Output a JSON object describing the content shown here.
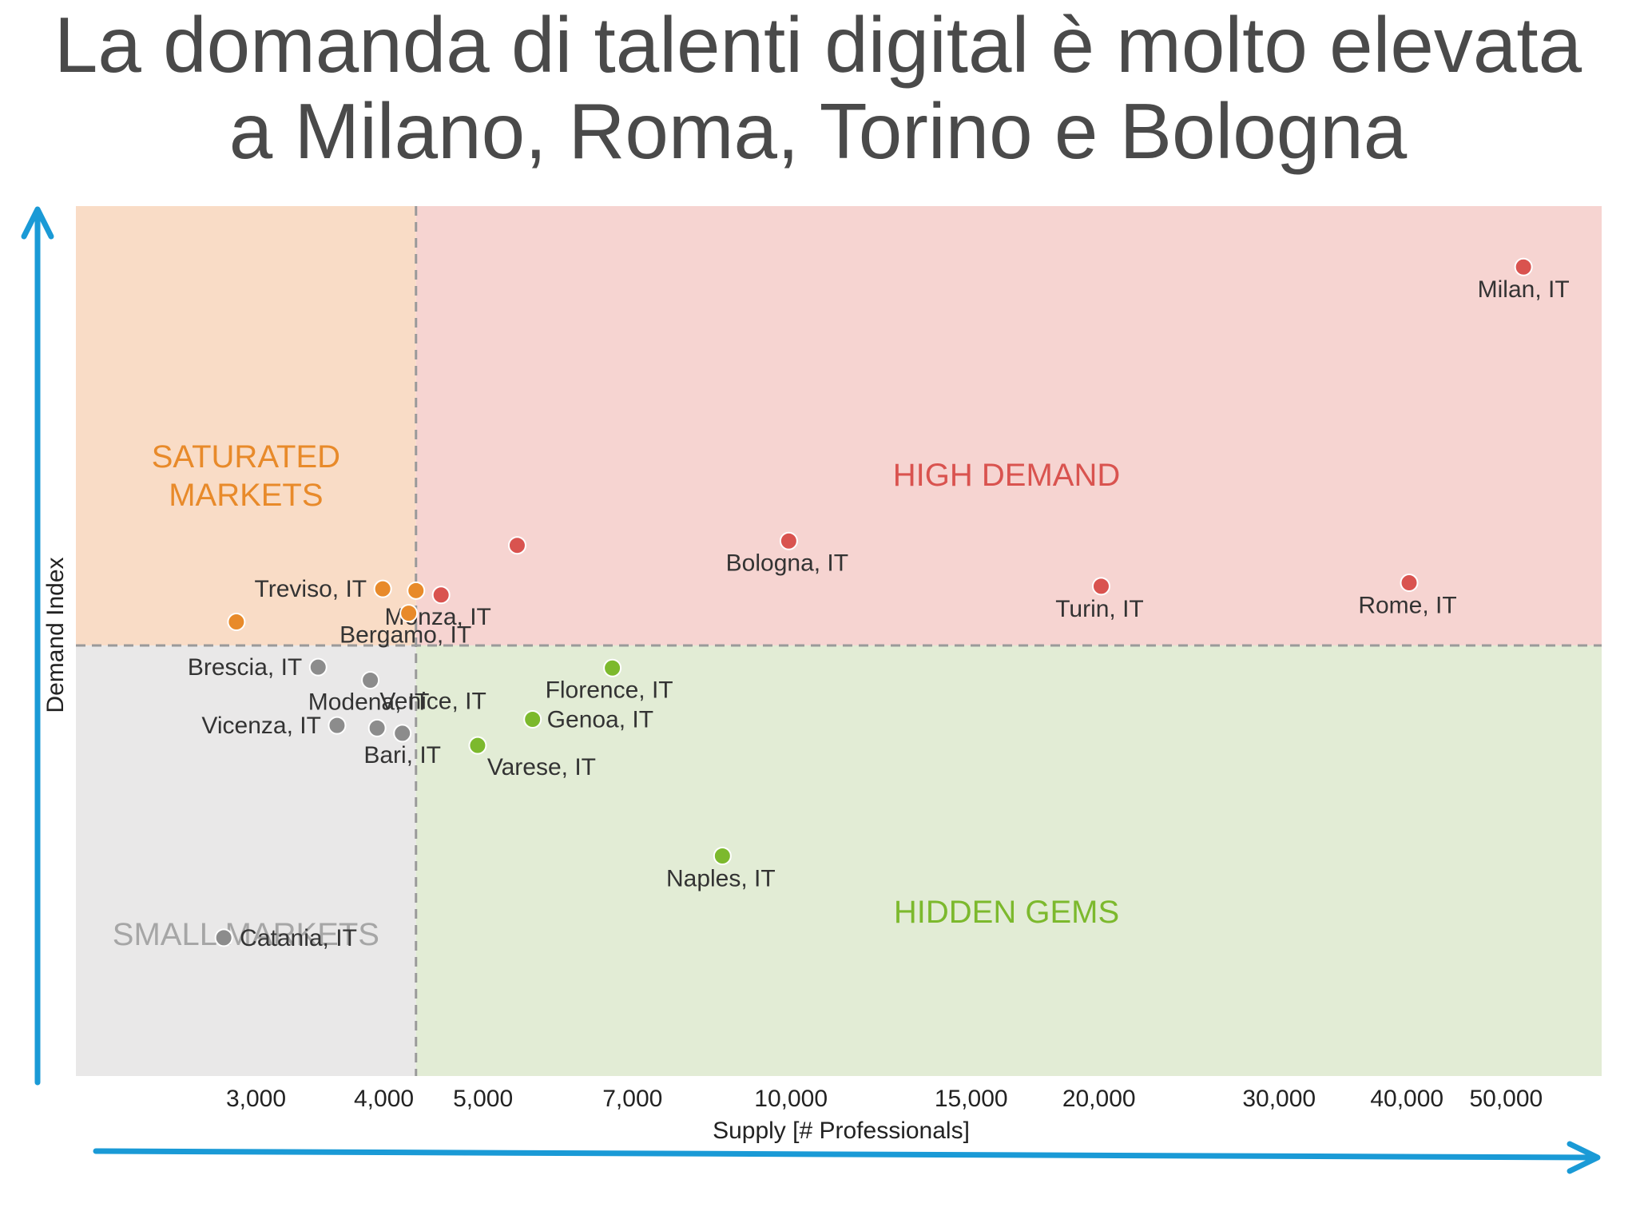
{
  "title": {
    "line1": "La domanda di talenti digital è molto elevata",
    "line2": "a Milano, Roma, Torino e Bologna"
  },
  "colors": {
    "high_demand": "#d9534f",
    "saturated": "#e88a2a",
    "hidden_gems": "#7cb92d",
    "small": "#8c8c8c",
    "arrow": "#1a9ad6",
    "high_demand_bg": "#f6d4d1",
    "saturated_bg": "#f9dcc6",
    "hidden_gems_bg": "#e2ecd5",
    "small_bg": "#e9e8e8"
  },
  "chart_data": {
    "type": "scatter",
    "xscale": "log",
    "xlabel": "Supply [# Professionals]",
    "ylabel": "Demand Index",
    "xlim": [
      2000,
      62000
    ],
    "ylim": [
      0,
      100
    ],
    "x_ticks": [
      {
        "value": 3000,
        "label": "3,000"
      },
      {
        "value": 4000,
        "label": "4,000"
      },
      {
        "value": 5000,
        "label": "5,000"
      },
      {
        "value": 7000,
        "label": "7,000"
      },
      {
        "value": 10000,
        "label": "10,000"
      },
      {
        "value": 15000,
        "label": "15,000"
      },
      {
        "value": 20000,
        "label": "20,000"
      },
      {
        "value": 30000,
        "label": "30,000"
      },
      {
        "value": 40000,
        "label": "40,000"
      },
      {
        "value": 50000,
        "label": "50,000"
      }
    ],
    "thresholds": {
      "x": 4300,
      "y": 49.5
    },
    "quadrants": [
      {
        "name": "SATURATED\nMARKETS",
        "group": "saturated"
      },
      {
        "name": "HIGH DEMAND",
        "group": "high_demand"
      },
      {
        "name": "SMALL MARKETS",
        "group": "small"
      },
      {
        "name": "HIDDEN GEMS",
        "group": "hidden_gems"
      }
    ],
    "points": [
      {
        "label": "Milan, IT",
        "x": 52000,
        "y": 93.0,
        "group": "high_demand"
      },
      {
        "label": "Bologna, IT",
        "x": 9950,
        "y": 61.5,
        "group": "high_demand"
      },
      {
        "label": "Turin, IT",
        "x": 20100,
        "y": 56.3,
        "group": "high_demand"
      },
      {
        "label": "Rome, IT",
        "x": 40200,
        "y": 56.7,
        "group": "high_demand"
      },
      {
        "label": "Monza, IT",
        "x": 4550,
        "y": 55.3,
        "group": "high_demand"
      },
      {
        "label": "",
        "x": 5400,
        "y": 61.0,
        "group": "high_demand"
      },
      {
        "label": "Bergamo, IT",
        "x": 4230,
        "y": 53.2,
        "group": "saturated"
      },
      {
        "label": "Treviso, IT",
        "x": 3990,
        "y": 56.0,
        "group": "saturated"
      },
      {
        "label": "",
        "x": 4300,
        "y": 55.8,
        "group": "saturated"
      },
      {
        "label": "",
        "x": 2870,
        "y": 52.2,
        "group": "saturated"
      },
      {
        "label": "Brescia, IT",
        "x": 3450,
        "y": 47.0,
        "group": "small"
      },
      {
        "label": "Modena, IT",
        "x": 3880,
        "y": 45.5,
        "group": "small"
      },
      {
        "label": "Vicenza, IT",
        "x": 3600,
        "y": 40.3,
        "group": "small"
      },
      {
        "label": "Venice, IT",
        "x": 3940,
        "y": 40.0,
        "group": "small"
      },
      {
        "label": "Bari, IT",
        "x": 4170,
        "y": 39.4,
        "group": "small"
      },
      {
        "label": "Catania, IT",
        "x": 2790,
        "y": 15.9,
        "group": "small"
      },
      {
        "label": "Florence, IT",
        "x": 6690,
        "y": 46.9,
        "group": "hidden_gems"
      },
      {
        "label": "Genoa, IT",
        "x": 5590,
        "y": 41.0,
        "group": "hidden_gems"
      },
      {
        "label": "Varese, IT",
        "x": 4940,
        "y": 38.0,
        "group": "hidden_gems"
      },
      {
        "label": "Naples, IT",
        "x": 8570,
        "y": 25.3,
        "group": "hidden_gems"
      }
    ]
  }
}
